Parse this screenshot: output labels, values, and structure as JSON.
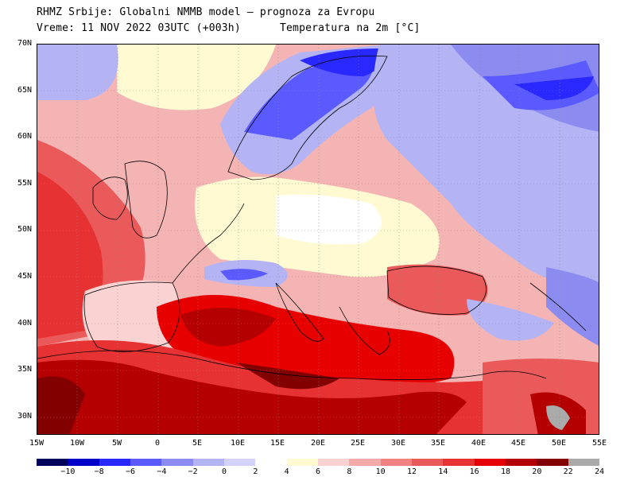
{
  "header": {
    "line1": "RHMZ Srbije: Globalni NMMB model — prognoza za Evropu",
    "line2": "Vreme: 11 NOV 2022 03UTC (+003h)",
    "line3": "Temperatura na 2m [°C]"
  },
  "map": {
    "lat_labels": [
      "70N",
      "65N",
      "60N",
      "55N",
      "50N",
      "45N",
      "40N",
      "35N",
      "30N"
    ],
    "lon_labels": [
      "15W",
      "10W",
      "5W",
      "0",
      "5E",
      "10E",
      "15E",
      "20E",
      "25E",
      "30E",
      "35E",
      "40E",
      "45E",
      "50E",
      "55E"
    ],
    "extent": {
      "lon_min": -15,
      "lon_max": 55,
      "lat_min": 28,
      "lat_max": 70
    }
  },
  "legend": {
    "colors": [
      "#00005a",
      "#0000c8",
      "#2828ff",
      "#5a5aff",
      "#8c8cf0",
      "#b4b4f5",
      "#d2d2fa",
      "#ffffff",
      "#fffad2",
      "#fad2d2",
      "#f5aaaa",
      "#f08282",
      "#eb5a5a",
      "#e63232",
      "#e60000",
      "#b40000",
      "#820000",
      "#aaaaaa"
    ],
    "labels": [
      "−10",
      "−8",
      "−6",
      "−4",
      "−2",
      "0",
      "2",
      "4",
      "6",
      "8",
      "10",
      "12",
      "14",
      "16",
      "18",
      "20",
      "22",
      "24"
    ]
  }
}
